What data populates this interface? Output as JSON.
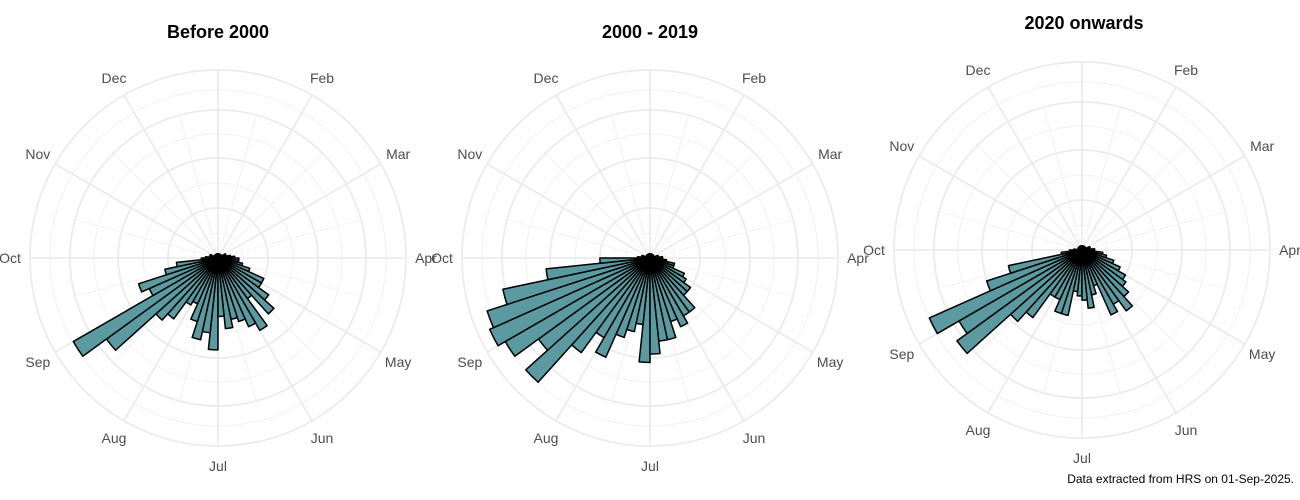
{
  "colors": {
    "bar_fill": "#5b9aa0",
    "bar_stroke": "#000000",
    "grid": "#ebebeb",
    "label": "#4d4d4d"
  },
  "caption": "Data extracted from HRS on 01-Sep-2025.",
  "chart_data": [
    {
      "type": "bar",
      "coord": "polar",
      "title": "Before 2000",
      "month_labels": [
        "Dec",
        "Feb",
        "Mar",
        "Apr",
        "May",
        "Jun",
        "Jul",
        "Aug",
        "Sep",
        "Oct",
        "Nov"
      ],
      "bins_per_month": 5,
      "values": [
        {
          "month": "Jul",
          "bin": 1,
          "value": 2.2
        },
        {
          "month": "Jul",
          "bin": 2,
          "value": 1.8
        },
        {
          "month": "Jul",
          "bin": 3,
          "value": 2.0
        },
        {
          "month": "Jul",
          "bin": 4,
          "value": 1.6
        },
        {
          "month": "Jul",
          "bin": 5,
          "value": 1.2
        },
        {
          "month": "Aug",
          "bin": 1,
          "value": 1.3
        },
        {
          "month": "Aug",
          "bin": 2,
          "value": 1.8
        },
        {
          "month": "Aug",
          "bin": 3,
          "value": 2.0
        },
        {
          "month": "Aug",
          "bin": 4,
          "value": 3.3
        },
        {
          "month": "Aug",
          "bin": 5,
          "value": 4.0
        },
        {
          "month": "Sep",
          "bin": 1,
          "value": 1.8
        },
        {
          "month": "Sep",
          "bin": 2,
          "value": 2.0
        },
        {
          "month": "Sep",
          "bin": 3,
          "value": 1.3
        },
        {
          "month": "Sep",
          "bin": 4,
          "value": 1.0
        },
        {
          "month": "Sep",
          "bin": 5,
          "value": 0.4
        },
        {
          "month": "Oct",
          "bin": 1,
          "value": 0.3
        },
        {
          "month": "Oct",
          "bin": 2,
          "value": 0.2
        },
        {
          "month": "Oct",
          "bin": 3,
          "value": 0.2
        },
        {
          "month": "Oct",
          "bin": 4,
          "value": 0.2
        },
        {
          "month": "Oct",
          "bin": 5,
          "value": 0.1
        },
        {
          "month": "Nov",
          "bin": 1,
          "value": 0.1
        },
        {
          "month": "Nov",
          "bin": 2,
          "value": 0.1
        },
        {
          "month": "Nov",
          "bin": 3,
          "value": 0.1
        },
        {
          "month": "Nov",
          "bin": 4,
          "value": 0.1
        },
        {
          "month": "Nov",
          "bin": 5,
          "value": 0.1
        },
        {
          "month": "Dec",
          "bin": 1,
          "value": 0.1
        },
        {
          "month": "Dec",
          "bin": 2,
          "value": 0.1
        },
        {
          "month": "Dec",
          "bin": 3,
          "value": 0.1
        },
        {
          "month": "Dec",
          "bin": 4,
          "value": 0.1
        },
        {
          "month": "Dec",
          "bin": 5,
          "value": 0.1
        },
        {
          "month": "Jan",
          "bin": 1,
          "value": 0.1
        },
        {
          "month": "Jan",
          "bin": 2,
          "value": 0.1
        },
        {
          "month": "Jan",
          "bin": 3,
          "value": 0.1
        },
        {
          "month": "Jan",
          "bin": 4,
          "value": 0.1
        },
        {
          "month": "Jan",
          "bin": 5,
          "value": 0.1
        },
        {
          "month": "Feb",
          "bin": 1,
          "value": 0.1
        },
        {
          "month": "Feb",
          "bin": 2,
          "value": 0.1
        },
        {
          "month": "Feb",
          "bin": 3,
          "value": 0.1
        },
        {
          "month": "Feb",
          "bin": 4,
          "value": 0.1
        },
        {
          "month": "Feb",
          "bin": 5,
          "value": 0.1
        },
        {
          "month": "Mar",
          "bin": 1,
          "value": 0.2
        },
        {
          "month": "Mar",
          "bin": 2,
          "value": 0.2
        },
        {
          "month": "Mar",
          "bin": 3,
          "value": 0.2
        },
        {
          "month": "Mar",
          "bin": 4,
          "value": 0.3
        },
        {
          "month": "Mar",
          "bin": 5,
          "value": 0.4
        },
        {
          "month": "Apr",
          "bin": 1,
          "value": 0.5
        },
        {
          "month": "Apr",
          "bin": 2,
          "value": 0.5
        },
        {
          "month": "Apr",
          "bin": 3,
          "value": 0.6
        },
        {
          "month": "Apr",
          "bin": 4,
          "value": 0.8
        },
        {
          "month": "Apr",
          "bin": 5,
          "value": 1.2
        },
        {
          "month": "May",
          "bin": 1,
          "value": 1.2
        },
        {
          "month": "May",
          "bin": 2,
          "value": 1.5
        },
        {
          "month": "May",
          "bin": 3,
          "value": 1.8
        },
        {
          "month": "May",
          "bin": 4,
          "value": 1.2
        },
        {
          "month": "May",
          "bin": 5,
          "value": 2.0
        },
        {
          "month": "Jun",
          "bin": 1,
          "value": 1.8
        },
        {
          "month": "Jun",
          "bin": 2,
          "value": 1.6
        },
        {
          "month": "Jun",
          "bin": 3,
          "value": 1.5
        },
        {
          "month": "Jun",
          "bin": 4,
          "value": 1.7
        },
        {
          "month": "Jun",
          "bin": 5,
          "value": 1.4
        }
      ],
      "rlim": [
        0,
        4.5
      ]
    },
    {
      "type": "bar",
      "coord": "polar",
      "title": "2000 - 2019",
      "month_labels": [
        "Dec",
        "Feb",
        "Mar",
        "Apr",
        "May",
        "Jun",
        "Jul",
        "Aug",
        "Sep",
        "Oct",
        "Nov"
      ],
      "bins_per_month": 5,
      "values": [
        {
          "month": "Jul",
          "bin": 1,
          "value": 2.5
        },
        {
          "month": "Jul",
          "bin": 2,
          "value": 1.6
        },
        {
          "month": "Jul",
          "bin": 3,
          "value": 1.8
        },
        {
          "month": "Jul",
          "bin": 4,
          "value": 2.0
        },
        {
          "month": "Jul",
          "bin": 5,
          "value": 2.6
        },
        {
          "month": "Aug",
          "bin": 1,
          "value": 2.2
        },
        {
          "month": "Aug",
          "bin": 2,
          "value": 2.8
        },
        {
          "month": "Aug",
          "bin": 3,
          "value": 4.0
        },
        {
          "month": "Aug",
          "bin": 4,
          "value": 3.3
        },
        {
          "month": "Aug",
          "bin": 5,
          "value": 4.0
        },
        {
          "month": "Sep",
          "bin": 1,
          "value": 4.2
        },
        {
          "month": "Sep",
          "bin": 2,
          "value": 4.1
        },
        {
          "month": "Sep",
          "bin": 3,
          "value": 3.6
        },
        {
          "month": "Sep",
          "bin": 4,
          "value": 2.5
        },
        {
          "month": "Sep",
          "bin": 5,
          "value": 1.2
        },
        {
          "month": "Oct",
          "bin": 1,
          "value": 0.3
        },
        {
          "month": "Oct",
          "bin": 2,
          "value": 0.2
        },
        {
          "month": "Oct",
          "bin": 3,
          "value": 0.2
        },
        {
          "month": "Oct",
          "bin": 4,
          "value": 0.1
        },
        {
          "month": "Oct",
          "bin": 5,
          "value": 0.1
        },
        {
          "month": "Nov",
          "bin": 1,
          "value": 0.1
        },
        {
          "month": "Nov",
          "bin": 2,
          "value": 0.1
        },
        {
          "month": "Nov",
          "bin": 3,
          "value": 0.1
        },
        {
          "month": "Nov",
          "bin": 4,
          "value": 0.1
        },
        {
          "month": "Nov",
          "bin": 5,
          "value": 0.1
        },
        {
          "month": "Dec",
          "bin": 1,
          "value": 0.1
        },
        {
          "month": "Dec",
          "bin": 2,
          "value": 0.1
        },
        {
          "month": "Dec",
          "bin": 3,
          "value": 0.1
        },
        {
          "month": "Dec",
          "bin": 4,
          "value": 0.1
        },
        {
          "month": "Dec",
          "bin": 5,
          "value": 0.1
        },
        {
          "month": "Jan",
          "bin": 1,
          "value": 0.1
        },
        {
          "month": "Jan",
          "bin": 2,
          "value": 0.1
        },
        {
          "month": "Jan",
          "bin": 3,
          "value": 0.1
        },
        {
          "month": "Jan",
          "bin": 4,
          "value": 0.1
        },
        {
          "month": "Jan",
          "bin": 5,
          "value": 0.1
        },
        {
          "month": "Feb",
          "bin": 1,
          "value": 0.1
        },
        {
          "month": "Feb",
          "bin": 2,
          "value": 0.1
        },
        {
          "month": "Feb",
          "bin": 3,
          "value": 0.1
        },
        {
          "month": "Feb",
          "bin": 4,
          "value": 0.1
        },
        {
          "month": "Feb",
          "bin": 5,
          "value": 0.1
        },
        {
          "month": "Mar",
          "bin": 1,
          "value": 0.1
        },
        {
          "month": "Mar",
          "bin": 2,
          "value": 0.1
        },
        {
          "month": "Mar",
          "bin": 3,
          "value": 0.2
        },
        {
          "month": "Mar",
          "bin": 4,
          "value": 0.2
        },
        {
          "month": "Mar",
          "bin": 5,
          "value": 0.3
        },
        {
          "month": "Apr",
          "bin": 1,
          "value": 0.3
        },
        {
          "month": "Apr",
          "bin": 2,
          "value": 0.4
        },
        {
          "month": "Apr",
          "bin": 3,
          "value": 0.6
        },
        {
          "month": "Apr",
          "bin": 4,
          "value": 0.6
        },
        {
          "month": "Apr",
          "bin": 5,
          "value": 0.9
        },
        {
          "month": "May",
          "bin": 1,
          "value": 1.0
        },
        {
          "month": "May",
          "bin": 2,
          "value": 1.2
        },
        {
          "month": "May",
          "bin": 3,
          "value": 1.2
        },
        {
          "month": "May",
          "bin": 4,
          "value": 1.6
        },
        {
          "month": "May",
          "bin": 5,
          "value": 1.6
        },
        {
          "month": "Jun",
          "bin": 1,
          "value": 1.8
        },
        {
          "month": "Jun",
          "bin": 2,
          "value": 1.6
        },
        {
          "month": "Jun",
          "bin": 3,
          "value": 2.0
        },
        {
          "month": "Jun",
          "bin": 4,
          "value": 2.0
        },
        {
          "month": "Jun",
          "bin": 5,
          "value": 2.3
        }
      ],
      "rlim": [
        0,
        4.5
      ]
    },
    {
      "type": "bar",
      "coord": "polar",
      "title": "2020 onwards",
      "month_labels": [
        "Dec",
        "Feb",
        "Mar",
        "Apr",
        "May",
        "Jun",
        "Jul",
        "Aug",
        "Sep",
        "Oct",
        "Nov"
      ],
      "bins_per_month": 5,
      "values": [
        {
          "month": "Jul",
          "bin": 1,
          "value": 1.1
        },
        {
          "month": "Jul",
          "bin": 2,
          "value": 1.0
        },
        {
          "month": "Jul",
          "bin": 3,
          "value": 1.6
        },
        {
          "month": "Jul",
          "bin": 4,
          "value": 1.6
        },
        {
          "month": "Jul",
          "bin": 5,
          "value": 1.3
        },
        {
          "month": "Aug",
          "bin": 1,
          "value": 1.3
        },
        {
          "month": "Aug",
          "bin": 2,
          "value": 2.0
        },
        {
          "month": "Aug",
          "bin": 3,
          "value": 2.3
        },
        {
          "month": "Aug",
          "bin": 4,
          "value": 3.7
        },
        {
          "month": "Aug",
          "bin": 5,
          "value": 3.4
        },
        {
          "month": "Sep",
          "bin": 1,
          "value": 4.0
        },
        {
          "month": "Sep",
          "bin": 2,
          "value": 2.4
        },
        {
          "month": "Sep",
          "bin": 3,
          "value": 1.8
        },
        {
          "month": "Sep",
          "bin": 4,
          "value": 0.5
        },
        {
          "month": "Sep",
          "bin": 5,
          "value": 0.3
        },
        {
          "month": "Oct",
          "bin": 1,
          "value": 0.2
        },
        {
          "month": "Oct",
          "bin": 2,
          "value": 0.1
        },
        {
          "month": "Oct",
          "bin": 3,
          "value": 0.1
        },
        {
          "month": "Oct",
          "bin": 4,
          "value": 0.1
        },
        {
          "month": "Oct",
          "bin": 5,
          "value": 0.1
        },
        {
          "month": "Nov",
          "bin": 1,
          "value": 0.1
        },
        {
          "month": "Nov",
          "bin": 2,
          "value": 0.1
        },
        {
          "month": "Nov",
          "bin": 3,
          "value": 0.1
        },
        {
          "month": "Nov",
          "bin": 4,
          "value": 0.1
        },
        {
          "month": "Nov",
          "bin": 5,
          "value": 0.1
        },
        {
          "month": "Dec",
          "bin": 1,
          "value": 0.1
        },
        {
          "month": "Dec",
          "bin": 2,
          "value": 0.1
        },
        {
          "month": "Dec",
          "bin": 3,
          "value": 0.1
        },
        {
          "month": "Dec",
          "bin": 4,
          "value": 0.1
        },
        {
          "month": "Dec",
          "bin": 5,
          "value": 0.1
        },
        {
          "month": "Jan",
          "bin": 1,
          "value": 0.1
        },
        {
          "month": "Jan",
          "bin": 2,
          "value": 0.1
        },
        {
          "month": "Jan",
          "bin": 3,
          "value": 0.1
        },
        {
          "month": "Jan",
          "bin": 4,
          "value": 0.1
        },
        {
          "month": "Jan",
          "bin": 5,
          "value": 0.1
        },
        {
          "month": "Feb",
          "bin": 1,
          "value": 0.1
        },
        {
          "month": "Feb",
          "bin": 2,
          "value": 0.1
        },
        {
          "month": "Feb",
          "bin": 3,
          "value": 0.1
        },
        {
          "month": "Feb",
          "bin": 4,
          "value": 0.1
        },
        {
          "month": "Feb",
          "bin": 5,
          "value": 0.1
        },
        {
          "month": "Mar",
          "bin": 1,
          "value": 0.1
        },
        {
          "month": "Mar",
          "bin": 2,
          "value": 0.2
        },
        {
          "month": "Mar",
          "bin": 3,
          "value": 0.2
        },
        {
          "month": "Mar",
          "bin": 4,
          "value": 0.2
        },
        {
          "month": "Mar",
          "bin": 5,
          "value": 0.3
        },
        {
          "month": "Apr",
          "bin": 1,
          "value": 0.3
        },
        {
          "month": "Apr",
          "bin": 2,
          "value": 0.5
        },
        {
          "month": "Apr",
          "bin": 3,
          "value": 0.6
        },
        {
          "month": "Apr",
          "bin": 4,
          "value": 0.8
        },
        {
          "month": "Apr",
          "bin": 5,
          "value": 1.0
        },
        {
          "month": "May",
          "bin": 1,
          "value": 1.2
        },
        {
          "month": "May",
          "bin": 2,
          "value": 1.3
        },
        {
          "month": "May",
          "bin": 3,
          "value": 1.5
        },
        {
          "month": "May",
          "bin": 4,
          "value": 1.8
        },
        {
          "month": "May",
          "bin": 5,
          "value": 1.5
        },
        {
          "month": "Jun",
          "bin": 1,
          "value": 1.7
        },
        {
          "month": "Jun",
          "bin": 2,
          "value": 0.9
        },
        {
          "month": "Jun",
          "bin": 3,
          "value": 1.1
        },
        {
          "month": "Jun",
          "bin": 4,
          "value": 1.4
        },
        {
          "month": "Jun",
          "bin": 5,
          "value": 1.2
        }
      ],
      "rlim": [
        0,
        4.5
      ]
    }
  ]
}
